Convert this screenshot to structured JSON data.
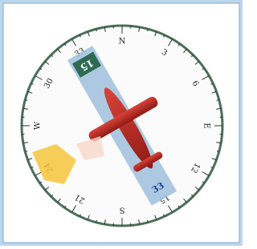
{
  "compass": {
    "labels": [
      "N",
      "3",
      "6",
      "E",
      "12",
      "15",
      "S",
      "21",
      "24",
      "W",
      "30",
      "33"
    ]
  },
  "runway": {
    "ends": [
      "15",
      "33"
    ]
  }
}
